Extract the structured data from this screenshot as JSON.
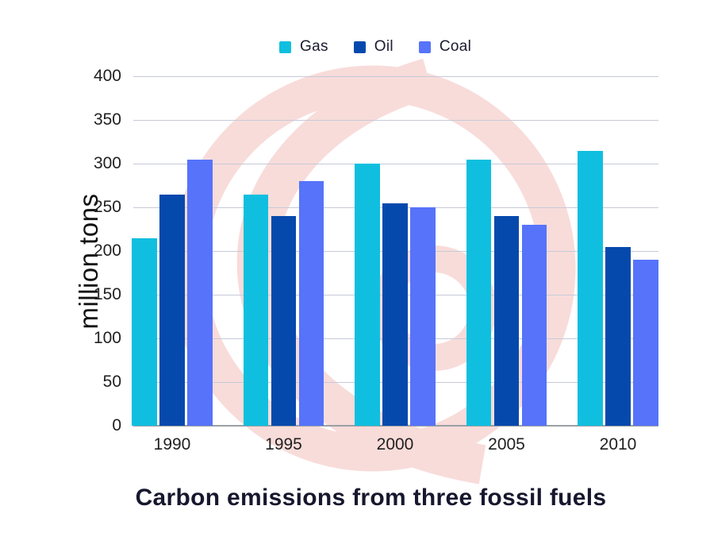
{
  "watermark": {
    "color": "#f8dcda"
  },
  "legend": [
    {
      "label": "Gas",
      "color": "#10bfdf"
    },
    {
      "label": "Oil",
      "color": "#0649ad"
    },
    {
      "label": "Coal",
      "color": "#5673fa"
    }
  ],
  "chart_data": {
    "type": "bar",
    "title": "Carbon emissions from three fossil fuels",
    "xlabel": "",
    "ylabel": "million tons",
    "categories": [
      "1990",
      "1995",
      "2000",
      "2005",
      "2010"
    ],
    "series": [
      {
        "name": "Gas",
        "color": "#10bfdf",
        "values": [
          215,
          265,
          300,
          305,
          315
        ]
      },
      {
        "name": "Oil",
        "color": "#0649ad",
        "values": [
          265,
          240,
          255,
          240,
          205
        ]
      },
      {
        "name": "Coal",
        "color": "#5673fa",
        "values": [
          305,
          280,
          250,
          230,
          190
        ]
      }
    ],
    "ylim": [
      0,
      400
    ],
    "ytick_step": 50,
    "grid": true,
    "legend_position": "top"
  }
}
